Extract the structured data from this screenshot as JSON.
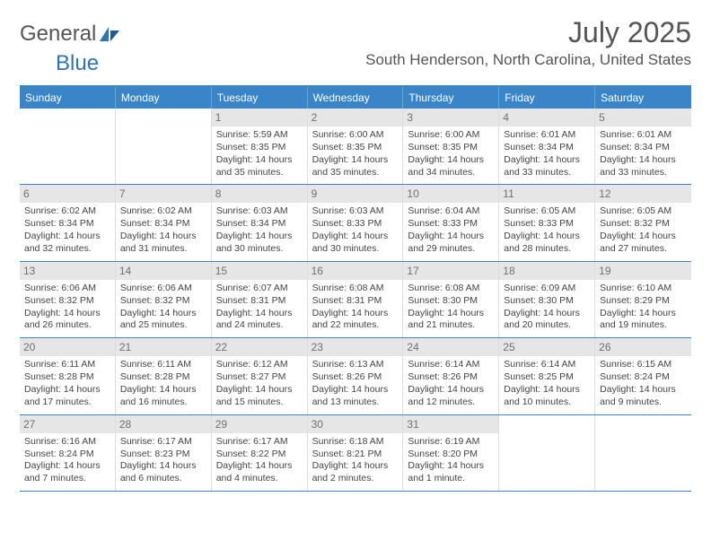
{
  "brand": {
    "name1": "General",
    "name2": "Blue",
    "accent_color": "#2f73b5",
    "text_color": "#555555"
  },
  "header": {
    "title": "July 2025",
    "location": "South Henderson, North Carolina, United States"
  },
  "colors": {
    "header_bg": "#3a85c7",
    "header_text": "#ffffff",
    "daynum_bg": "#e6e6e6",
    "daynum_text": "#707070",
    "week_border": "#3a85c7"
  },
  "weekdays": [
    "Sunday",
    "Monday",
    "Tuesday",
    "Wednesday",
    "Thursday",
    "Friday",
    "Saturday"
  ],
  "weeks": [
    [
      {
        "n": "",
        "info": ""
      },
      {
        "n": "",
        "info": ""
      },
      {
        "n": "1",
        "info": "Sunrise: 5:59 AM\nSunset: 8:35 PM\nDaylight: 14 hours and 35 minutes."
      },
      {
        "n": "2",
        "info": "Sunrise: 6:00 AM\nSunset: 8:35 PM\nDaylight: 14 hours and 35 minutes."
      },
      {
        "n": "3",
        "info": "Sunrise: 6:00 AM\nSunset: 8:35 PM\nDaylight: 14 hours and 34 minutes."
      },
      {
        "n": "4",
        "info": "Sunrise: 6:01 AM\nSunset: 8:34 PM\nDaylight: 14 hours and 33 minutes."
      },
      {
        "n": "5",
        "info": "Sunrise: 6:01 AM\nSunset: 8:34 PM\nDaylight: 14 hours and 33 minutes."
      }
    ],
    [
      {
        "n": "6",
        "info": "Sunrise: 6:02 AM\nSunset: 8:34 PM\nDaylight: 14 hours and 32 minutes."
      },
      {
        "n": "7",
        "info": "Sunrise: 6:02 AM\nSunset: 8:34 PM\nDaylight: 14 hours and 31 minutes."
      },
      {
        "n": "8",
        "info": "Sunrise: 6:03 AM\nSunset: 8:34 PM\nDaylight: 14 hours and 30 minutes."
      },
      {
        "n": "9",
        "info": "Sunrise: 6:03 AM\nSunset: 8:33 PM\nDaylight: 14 hours and 30 minutes."
      },
      {
        "n": "10",
        "info": "Sunrise: 6:04 AM\nSunset: 8:33 PM\nDaylight: 14 hours and 29 minutes."
      },
      {
        "n": "11",
        "info": "Sunrise: 6:05 AM\nSunset: 8:33 PM\nDaylight: 14 hours and 28 minutes."
      },
      {
        "n": "12",
        "info": "Sunrise: 6:05 AM\nSunset: 8:32 PM\nDaylight: 14 hours and 27 minutes."
      }
    ],
    [
      {
        "n": "13",
        "info": "Sunrise: 6:06 AM\nSunset: 8:32 PM\nDaylight: 14 hours and 26 minutes."
      },
      {
        "n": "14",
        "info": "Sunrise: 6:06 AM\nSunset: 8:32 PM\nDaylight: 14 hours and 25 minutes."
      },
      {
        "n": "15",
        "info": "Sunrise: 6:07 AM\nSunset: 8:31 PM\nDaylight: 14 hours and 24 minutes."
      },
      {
        "n": "16",
        "info": "Sunrise: 6:08 AM\nSunset: 8:31 PM\nDaylight: 14 hours and 22 minutes."
      },
      {
        "n": "17",
        "info": "Sunrise: 6:08 AM\nSunset: 8:30 PM\nDaylight: 14 hours and 21 minutes."
      },
      {
        "n": "18",
        "info": "Sunrise: 6:09 AM\nSunset: 8:30 PM\nDaylight: 14 hours and 20 minutes."
      },
      {
        "n": "19",
        "info": "Sunrise: 6:10 AM\nSunset: 8:29 PM\nDaylight: 14 hours and 19 minutes."
      }
    ],
    [
      {
        "n": "20",
        "info": "Sunrise: 6:11 AM\nSunset: 8:28 PM\nDaylight: 14 hours and 17 minutes."
      },
      {
        "n": "21",
        "info": "Sunrise: 6:11 AM\nSunset: 8:28 PM\nDaylight: 14 hours and 16 minutes."
      },
      {
        "n": "22",
        "info": "Sunrise: 6:12 AM\nSunset: 8:27 PM\nDaylight: 14 hours and 15 minutes."
      },
      {
        "n": "23",
        "info": "Sunrise: 6:13 AM\nSunset: 8:26 PM\nDaylight: 14 hours and 13 minutes."
      },
      {
        "n": "24",
        "info": "Sunrise: 6:14 AM\nSunset: 8:26 PM\nDaylight: 14 hours and 12 minutes."
      },
      {
        "n": "25",
        "info": "Sunrise: 6:14 AM\nSunset: 8:25 PM\nDaylight: 14 hours and 10 minutes."
      },
      {
        "n": "26",
        "info": "Sunrise: 6:15 AM\nSunset: 8:24 PM\nDaylight: 14 hours and 9 minutes."
      }
    ],
    [
      {
        "n": "27",
        "info": "Sunrise: 6:16 AM\nSunset: 8:24 PM\nDaylight: 14 hours and 7 minutes."
      },
      {
        "n": "28",
        "info": "Sunrise: 6:17 AM\nSunset: 8:23 PM\nDaylight: 14 hours and 6 minutes."
      },
      {
        "n": "29",
        "info": "Sunrise: 6:17 AM\nSunset: 8:22 PM\nDaylight: 14 hours and 4 minutes."
      },
      {
        "n": "30",
        "info": "Sunrise: 6:18 AM\nSunset: 8:21 PM\nDaylight: 14 hours and 2 minutes."
      },
      {
        "n": "31",
        "info": "Sunrise: 6:19 AM\nSunset: 8:20 PM\nDaylight: 14 hours and 1 minute."
      },
      {
        "n": "",
        "info": ""
      },
      {
        "n": "",
        "info": ""
      }
    ]
  ]
}
